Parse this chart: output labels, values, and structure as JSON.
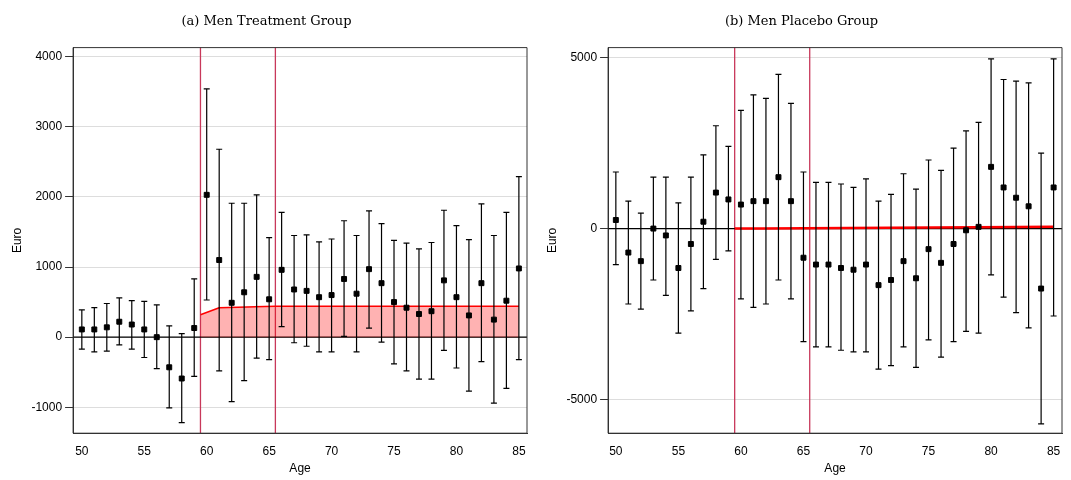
{
  "chart_data": [
    {
      "type": "scatter",
      "title": "(a) Men Treatment Group",
      "xlabel": "Age",
      "ylabel": "Euro",
      "xlim": [
        49.3,
        85.65
      ],
      "ylim": [
        -1370,
        4130
      ],
      "xticks": [
        50,
        55,
        60,
        65,
        70,
        75,
        80,
        85
      ],
      "yticks": [
        -1000,
        0,
        1000,
        2000,
        3000,
        4000
      ],
      "grid": "y",
      "legend": false,
      "series": [
        {
          "type": "area",
          "color": "#ff0000",
          "marker": "none",
          "x": [
            59.5,
            61,
            65.5,
            85
          ],
          "values": [
            320,
            420,
            440,
            440
          ]
        },
        {
          "color": "#000000",
          "marker": "square",
          "x": [
            50,
            51,
            52,
            53,
            54,
            55,
            56,
            57,
            58,
            59,
            60,
            61,
            62,
            63,
            64,
            65,
            66,
            67,
            68,
            69,
            70,
            71,
            72,
            73,
            74,
            75,
            76,
            77,
            78,
            79,
            80,
            81,
            82,
            83,
            84,
            85
          ],
          "values": [
            110,
            110,
            140,
            220,
            180,
            110,
            0,
            -430,
            -590,
            130,
            2030,
            1100,
            490,
            640,
            860,
            540,
            960,
            680,
            660,
            570,
            600,
            830,
            620,
            970,
            770,
            500,
            420,
            330,
            370,
            810,
            570,
            310,
            770,
            250,
            520,
            980
          ],
          "errors": [
            [
              -170,
              390
            ],
            [
              -210,
              420
            ],
            [
              -200,
              480
            ],
            [
              -110,
              560
            ],
            [
              -170,
              520
            ],
            [
              -290,
              510
            ],
            [
              -450,
              460
            ],
            [
              -1010,
              160
            ],
            [
              -1220,
              50
            ],
            [
              -560,
              830
            ],
            [
              530,
              3540
            ],
            [
              -480,
              2680
            ],
            [
              -920,
              1910
            ],
            [
              -620,
              1910
            ],
            [
              -300,
              2030
            ],
            [
              -320,
              1420
            ],
            [
              150,
              1780
            ],
            [
              -80,
              1450
            ],
            [
              -130,
              1460
            ],
            [
              -210,
              1360
            ],
            [
              -210,
              1400
            ],
            [
              10,
              1660
            ],
            [
              -210,
              1450
            ],
            [
              130,
              1800
            ],
            [
              -70,
              1620
            ],
            [
              -380,
              1380
            ],
            [
              -480,
              1340
            ],
            [
              -600,
              1260
            ],
            [
              -600,
              1350
            ],
            [
              -190,
              1810
            ],
            [
              -440,
              1590
            ],
            [
              -770,
              1390
            ],
            [
              -350,
              1900
            ],
            [
              -940,
              1450
            ],
            [
              -730,
              1780
            ],
            [
              -320,
              2290
            ]
          ]
        }
      ],
      "ref_lines": [
        {
          "axis": "x",
          "value": 59.5,
          "color": "#c8385a"
        },
        {
          "axis": "x",
          "value": 65.5,
          "color": "#c8385a"
        },
        {
          "axis": "y",
          "value": 0,
          "color": "#000000"
        }
      ]
    },
    {
      "type": "scatter",
      "title": "(b) Men Placebo Group",
      "xlabel": "Age",
      "ylabel": "Euro",
      "xlim": [
        49.38,
        85.67
      ],
      "ylim": [
        -5970,
        5280
      ],
      "xticks": [
        50,
        55,
        60,
        65,
        70,
        75,
        80,
        85
      ],
      "yticks": [
        -5000,
        0,
        5000
      ],
      "grid": "y",
      "legend": false,
      "series": [
        {
          "type": "line",
          "color": "#ff0000",
          "marker": "none",
          "x": [
            59.5,
            85
          ],
          "values": [
            0,
            50
          ]
        },
        {
          "color": "#000000",
          "marker": "square",
          "x": [
            50,
            51,
            52,
            53,
            54,
            55,
            56,
            57,
            58,
            59,
            60,
            61,
            62,
            63,
            64,
            65,
            66,
            67,
            68,
            69,
            70,
            71,
            72,
            73,
            74,
            75,
            76,
            77,
            78,
            79,
            80,
            81,
            82,
            83,
            84,
            85
          ],
          "values": [
            250,
            -700,
            -950,
            0,
            -200,
            -1150,
            -450,
            200,
            1050,
            850,
            700,
            800,
            800,
            1500,
            800,
            -850,
            -1050,
            -1050,
            -1150,
            -1200,
            -1050,
            -1650,
            -1500,
            -950,
            -1450,
            -600,
            -1000,
            -450,
            -50,
            50,
            1800,
            1200,
            900,
            650,
            -1750,
            1200
          ],
          "errors": [
            [
              -1050,
              1650
            ],
            [
              -2200,
              800
            ],
            [
              -2350,
              450
            ],
            [
              -1500,
              1500
            ],
            [
              -1950,
              1500
            ],
            [
              -3050,
              750
            ],
            [
              -2400,
              1500
            ],
            [
              -1750,
              2150
            ],
            [
              -900,
              3000
            ],
            [
              -650,
              2400
            ],
            [
              -2050,
              3450
            ],
            [
              -2300,
              3900
            ],
            [
              -2200,
              3800
            ],
            [
              -1500,
              4500
            ],
            [
              -2050,
              3650
            ],
            [
              -3300,
              1650
            ],
            [
              -3450,
              1350
            ],
            [
              -3450,
              1350
            ],
            [
              -3550,
              1300
            ],
            [
              -3600,
              1200
            ],
            [
              -3600,
              1450
            ],
            [
              -4100,
              800
            ],
            [
              -4000,
              1000
            ],
            [
              -3450,
              1600
            ],
            [
              -4050,
              1150
            ],
            [
              -3250,
              2000
            ],
            [
              -3750,
              1700
            ],
            [
              -3300,
              2350
            ],
            [
              -3000,
              2850
            ],
            [
              -3050,
              3100
            ],
            [
              -1350,
              4950
            ],
            [
              -2000,
              4350
            ],
            [
              -2450,
              4300
            ],
            [
              -2900,
              4250
            ],
            [
              -5700,
              2200
            ],
            [
              -2550,
              4950
            ]
          ]
        }
      ],
      "ref_lines": [
        {
          "axis": "x",
          "value": 59.5,
          "color": "#c8385a"
        },
        {
          "axis": "x",
          "value": 65.5,
          "color": "#c8385a"
        },
        {
          "axis": "y",
          "value": 0,
          "color": "#000000"
        }
      ]
    }
  ]
}
